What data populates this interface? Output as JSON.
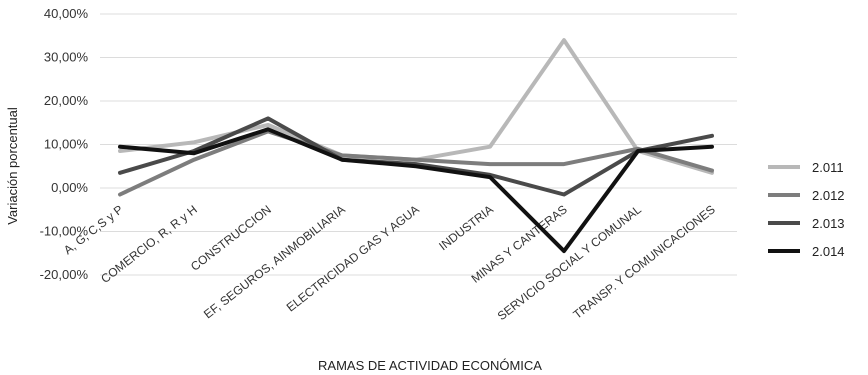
{
  "chart_data": {
    "type": "line",
    "xlabel": "RAMAS DE ACTIVIDAD ECONÓMICA",
    "ylabel": "Variación porcentual",
    "ylim": [
      -20,
      40
    ],
    "yticks": [
      "40,00%",
      "30,00%",
      "20,00%",
      "10,00%",
      "0,00%",
      "-10,00%",
      "-20,00%"
    ],
    "grid": true,
    "legend_position": "right",
    "categories": [
      "A, G, C,S y P",
      "COMERCIO, R, R y H",
      "CONSTRUCCION",
      "EF, SEGUROS, AINMOBILIARIA",
      "ELECTRICIDAD GAS Y AGUA",
      "INDUSTRIA",
      "MINAS Y CANTERAS",
      "SERVICIO SOCIAL Y COMUNAL",
      "TRANSP. Y COMUNICACIONES"
    ],
    "series": [
      {
        "name": "2.011",
        "color": "#b8b8b8",
        "values": [
          8.5,
          10.5,
          14.5,
          7.5,
          6.5,
          9.5,
          34,
          8.5,
          3.5
        ]
      },
      {
        "name": "2.012",
        "color": "#7d7d7d",
        "values": [
          -1.5,
          6.5,
          13,
          7.5,
          6.5,
          5.5,
          5.5,
          9,
          4
        ]
      },
      {
        "name": "2.013",
        "color": "#4a4a4a",
        "values": [
          3.5,
          8.5,
          16,
          6.5,
          5.5,
          3,
          -1.5,
          8.5,
          12
        ]
      },
      {
        "name": "2.014",
        "color": "#111111",
        "values": [
          9.5,
          8,
          13.5,
          6.5,
          5,
          2.5,
          -14.5,
          8.5,
          9.5
        ]
      }
    ]
  }
}
